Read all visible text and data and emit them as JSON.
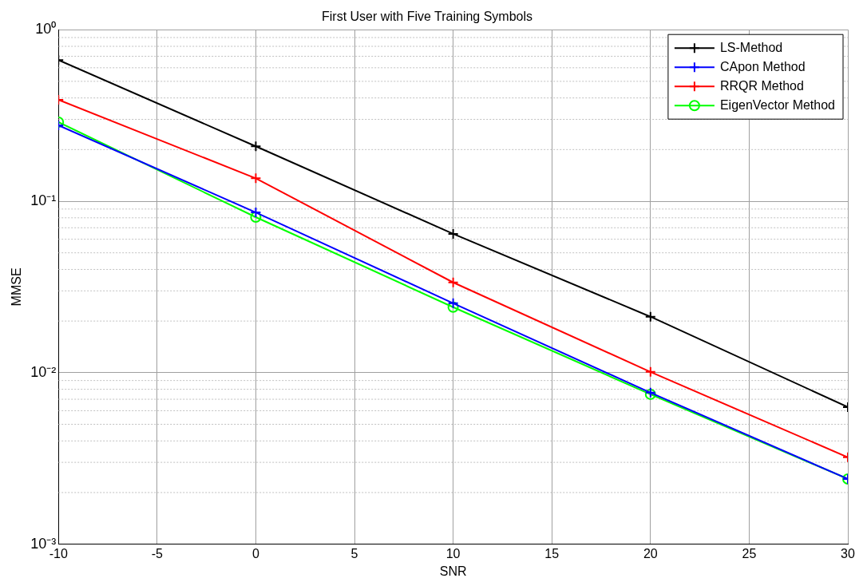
{
  "chart_data": {
    "type": "line",
    "title": "First User with Five Training Symbols",
    "xlabel": "SNR",
    "ylabel": "MMSE",
    "x": [
      -10,
      0,
      10,
      20,
      30
    ],
    "series": [
      {
        "name": "LS-Method",
        "color": "#000000",
        "marker": "cross",
        "values": [
          0.665,
          0.209,
          0.0645,
          0.0212,
          0.0063
        ]
      },
      {
        "name": "CApon Method",
        "color": "#0000ff",
        "marker": "cross",
        "values": [
          0.277,
          0.086,
          0.0254,
          0.00765,
          0.0024
        ]
      },
      {
        "name": "RRQR Method",
        "color": "#ff0000",
        "marker": "cross",
        "values": [
          0.39,
          0.136,
          0.0336,
          0.0101,
          0.00321
        ]
      },
      {
        "name": "EigenVector Method",
        "color": "#00ff00",
        "marker": "circle",
        "values": [
          0.289,
          0.0807,
          0.0241,
          0.00748,
          0.0024
        ]
      }
    ],
    "log": "y",
    "xlim": [
      -10,
      30
    ],
    "xticks": [
      -10,
      -5,
      0,
      5,
      10,
      15,
      20,
      25,
      30
    ],
    "ylim": [
      0.001,
      1
    ],
    "yticks": [
      {
        "value": 0.001,
        "label": "10⁻³"
      },
      {
        "value": 0.01,
        "label": "10⁻²"
      },
      {
        "value": 0.1,
        "label": "10⁻¹"
      },
      {
        "value": 1,
        "label": "10⁰"
      }
    ],
    "grid": true,
    "legend": "top right",
    "line_style": "solid"
  }
}
